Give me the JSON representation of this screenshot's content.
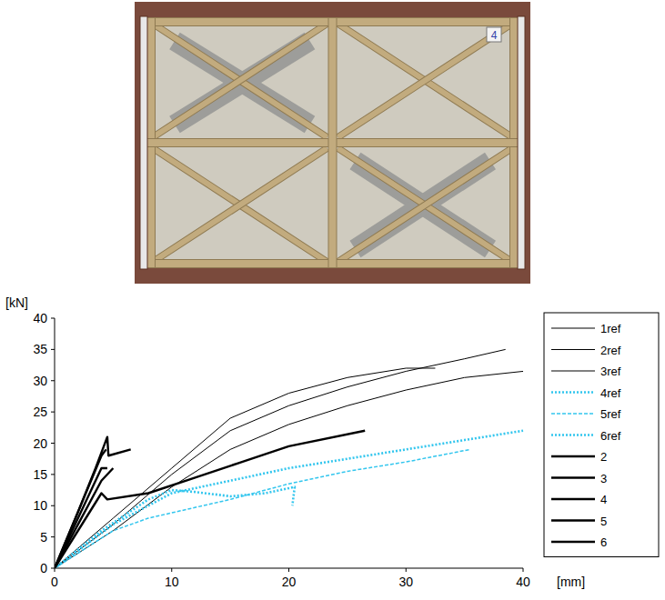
{
  "photo": {
    "label": "4"
  },
  "chart_data": {
    "type": "line",
    "x_label": "[mm]",
    "y_label": "[kN]",
    "xlim": [
      0,
      40
    ],
    "xticks": [
      0,
      10,
      20,
      30,
      40
    ],
    "ylim": [
      0,
      40
    ],
    "yticks": [
      0,
      5,
      10,
      15,
      20,
      25,
      30,
      35,
      40
    ],
    "grid": false,
    "legend": "right",
    "series": [
      {
        "name": "1ref",
        "color": "#000000",
        "line_style": "thin",
        "x": [
          0,
          5,
          10,
          15,
          20,
          25,
          30,
          35,
          38.5
        ],
        "values": [
          0,
          7,
          15,
          22,
          26,
          29,
          31.5,
          33.5,
          35
        ]
      },
      {
        "name": "2ref",
        "color": "#000000",
        "line_style": "thin",
        "x": [
          0,
          5,
          10,
          15,
          20,
          25,
          30,
          32.5
        ],
        "values": [
          0,
          8,
          16,
          24,
          28,
          30.5,
          32,
          32
        ]
      },
      {
        "name": "3ref",
        "color": "#000000",
        "line_style": "thin",
        "x": [
          0,
          5,
          10,
          15,
          20,
          25,
          30,
          35,
          40
        ],
        "values": [
          0,
          6,
          13,
          19,
          23,
          26,
          28.5,
          30.5,
          31.5
        ]
      },
      {
        "name": "4ref",
        "color": "#33c6ee",
        "line_style": "dotted",
        "x": [
          0,
          4,
          8,
          10,
          12,
          15,
          18,
          20.5,
          20.3
        ],
        "values": [
          0,
          6,
          11,
          12.5,
          12.2,
          11.5,
          12,
          13,
          10
        ]
      },
      {
        "name": "5ref",
        "color": "#33c6ee",
        "line_style": "dashed",
        "x": [
          0,
          5,
          8,
          15,
          20,
          25,
          30,
          35.5
        ],
        "values": [
          0,
          6,
          8,
          11,
          13.5,
          15.5,
          17,
          19
        ]
      },
      {
        "name": "6ref",
        "color": "#33c6ee",
        "line_style": "dotted",
        "x": [
          0,
          5,
          10,
          15,
          20,
          25,
          30,
          35,
          40
        ],
        "values": [
          0,
          7,
          12,
          14,
          16,
          17.5,
          19,
          20.5,
          22
        ]
      },
      {
        "name": "2",
        "color": "#000000",
        "line_style": "thick",
        "x": [
          0,
          2,
          3.5,
          4.5,
          4.6,
          6.5
        ],
        "values": [
          0,
          9,
          16,
          21,
          18,
          19
        ]
      },
      {
        "name": "3",
        "color": "#000000",
        "line_style": "thick",
        "x": [
          0,
          2,
          4,
          4.5
        ],
        "values": [
          0,
          8,
          16,
          16
        ]
      },
      {
        "name": "4",
        "color": "#000000",
        "line_style": "thick",
        "x": [
          0,
          2,
          4,
          4.5,
          8,
          12,
          16,
          20,
          26.5
        ],
        "values": [
          0,
          6,
          12,
          11,
          12,
          14.5,
          17,
          19.5,
          22
        ]
      },
      {
        "name": "5",
        "color": "#000000",
        "line_style": "thick",
        "x": [
          0,
          2,
          4,
          5
        ],
        "values": [
          0,
          7,
          14,
          16
        ]
      },
      {
        "name": "6",
        "color": "#000000",
        "line_style": "thick",
        "x": [
          0,
          2,
          4,
          4.4
        ],
        "values": [
          0,
          9,
          18,
          19
        ]
      }
    ]
  }
}
